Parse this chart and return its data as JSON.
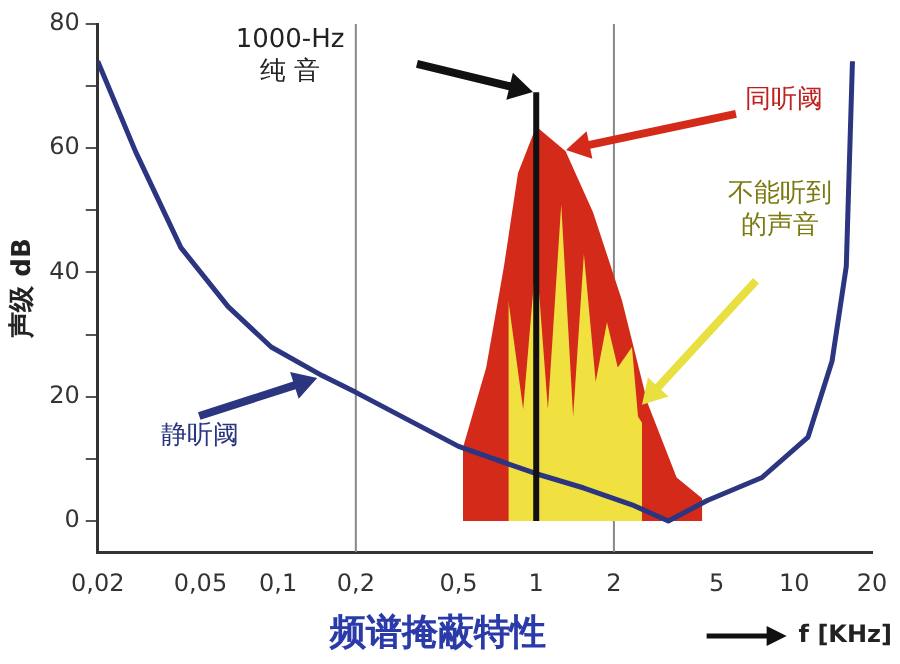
{
  "chart_data": {
    "type": "line",
    "title": "频谱掩蔽特性",
    "xlabel": "f [KHz]",
    "ylabel": "声级 dB",
    "log": "x",
    "grid": false,
    "legend": false,
    "marker": "none",
    "xlim": [
      0.02,
      20
    ],
    "ylim": [
      -5,
      80
    ],
    "xticks": [
      {
        "value": 0.02,
        "label": "0,02"
      },
      {
        "value": 0.05,
        "label": "0,05"
      },
      {
        "value": 0.1,
        "label": "0,1"
      },
      {
        "value": 0.2,
        "label": "0,2"
      },
      {
        "value": 0.5,
        "label": "0,5"
      },
      1,
      2,
      5,
      10,
      20
    ],
    "yticks": [
      0,
      {
        "value": 10,
        "label": null
      },
      20,
      {
        "value": 30,
        "label": null
      },
      40,
      {
        "value": 50,
        "label": null
      },
      60,
      {
        "value": 70,
        "label": null
      },
      80
    ],
    "series": [
      {
        "type": "line",
        "color": "#2b3580",
        "x": [
          0.02,
          0.028,
          0.042,
          0.064,
          0.094,
          0.148,
          0.2,
          0.5,
          1,
          1.53,
          2.35,
          3.25,
          4.6,
          7.5,
          11.3,
          14,
          15.9,
          16.8
        ],
        "values": [
          74,
          59.5,
          44,
          34.5,
          28,
          23.4,
          20.7,
          12,
          7.6,
          5.3,
          2.6,
          0,
          3.3,
          7,
          13.5,
          25.7,
          41,
          74
        ]
      },
      {
        "type": "area",
        "color": "#d42a1a",
        "x": [
          0.52,
          0.64,
          0.75,
          0.85,
          1,
          1.3,
          1.66,
          2.15,
          2.7,
          3.5,
          4.4
        ],
        "values": [
          11.8,
          24.7,
          41,
          56,
          63.5,
          59.5,
          49.7,
          35.5,
          19,
          7,
          3.6
        ]
      },
      {
        "type": "area",
        "color": "#f0e040",
        "x": [
          0.78,
          0.78,
          0.89,
          1,
          1.11,
          1.25,
          1.39,
          1.53,
          1.7,
          1.88,
          2.07,
          2.35,
          2.48,
          2.57,
          2.57
        ],
        "values": [
          0,
          35.5,
          18,
          42.8,
          18,
          51,
          16.8,
          43,
          22.4,
          32,
          24.7,
          28,
          16.8,
          15.8,
          0
        ]
      },
      {
        "type": "line",
        "color": "#111111",
        "x": [
          1,
          1
        ],
        "values": [
          0,
          69
        ]
      }
    ],
    "ref_lines": [
      {
        "axis": "x",
        "value": 0.2,
        "color": "#888888"
      },
      {
        "axis": "x",
        "value": 2,
        "color": "#888888"
      }
    ],
    "annotations": [
      "1000-Hz\n纯 音",
      "同听阈",
      "不能听到的声音",
      "静听阈"
    ]
  }
}
